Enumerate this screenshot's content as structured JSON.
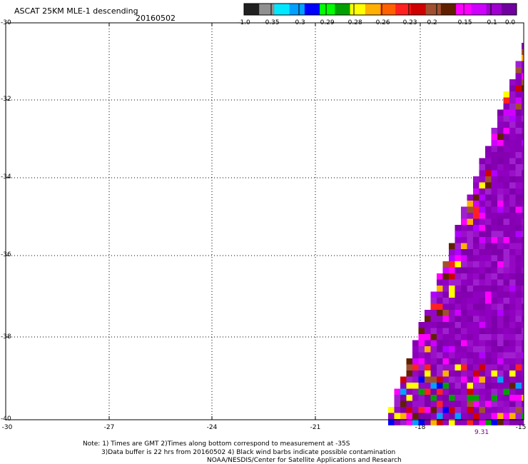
{
  "title": "ASCAT 25KM MLE-1 descending",
  "date": "20160502",
  "colorbar": {
    "colors": [
      "#202020",
      "#909090",
      "#00e8ff",
      "#00a0ff",
      "#0000ff",
      "#00ff00",
      "#00a000",
      "#ffff00",
      "#ffb000",
      "#ff6000",
      "#ff2020",
      "#d00000",
      "#a05030",
      "#602000",
      "#ff00ff",
      "#d000ff",
      "#a000d0",
      "#7000a0"
    ],
    "labels": [
      "-1.0",
      "-0.35",
      "-0.3",
      "-0.29",
      "-0.28",
      "-0.26",
      "-0.23",
      "-0.2",
      "-0.15",
      "-0.1",
      "0.0"
    ]
  },
  "axes": {
    "y_labels": [
      "-30",
      "-32",
      "-34",
      "-36",
      "-38",
      "-40"
    ],
    "x_labels": [
      "-30",
      "-27",
      "-24",
      "-21",
      "-18",
      "-15"
    ]
  },
  "time_label": "9.31",
  "notes": [
    "Note: 1) Times are GMT 2)Times along bottom correspond to measurement at -35S",
    "3)Data buffer is 22 hrs from 20160502 4) Black wind barbs indicate possible contamination",
    "NOAA/NESDIS/Center for Satellite Applications and Research"
  ]
}
